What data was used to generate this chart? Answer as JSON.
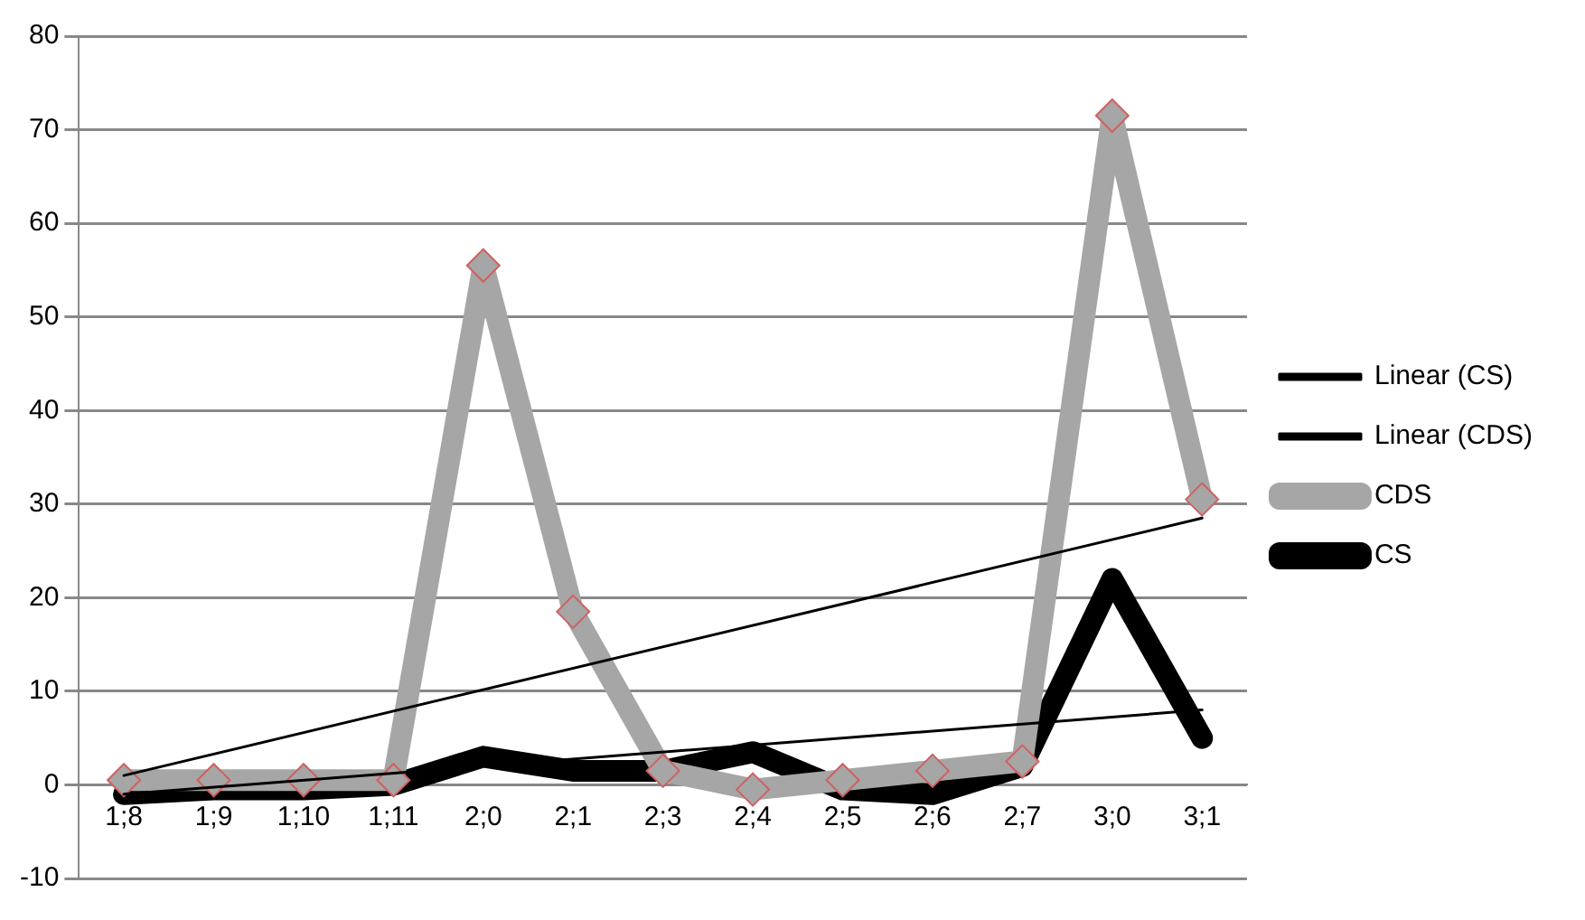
{
  "chart_data": {
    "type": "line",
    "categories": [
      "1;8",
      "1;9",
      "1;10",
      "1;11",
      "2;0",
      "2;1",
      "2;3",
      "2;4",
      "2;5",
      "2;6",
      "2;7",
      "3;0",
      "3;1"
    ],
    "series": [
      {
        "name": "CS",
        "color": "#000000",
        "marker": "none",
        "values": [
          -1,
          -0.5,
          -0.5,
          0,
          3,
          1.5,
          1.5,
          3.5,
          -0.5,
          -1,
          2,
          22,
          5
        ]
      },
      {
        "name": "CDS",
        "color": "#a6a6a6",
        "marker": "diamond",
        "values": [
          0.5,
          0.5,
          0.5,
          0.5,
          55.5,
          18.5,
          1.5,
          -0.5,
          0.5,
          1.5,
          2.5,
          71.5,
          30.5
        ]
      },
      {
        "name": "Linear (CS)",
        "type": "line",
        "color": "#000000",
        "marker": "none",
        "x": [
          "1;8",
          "3;1"
        ],
        "values": [
          -1,
          8
        ]
      },
      {
        "name": "Linear (CDS)",
        "type": "line",
        "color": "#000000",
        "marker": "none",
        "x": [
          "1;8",
          "3;1"
        ],
        "values": [
          1,
          28.5
        ]
      }
    ],
    "ylim": [
      -10,
      80
    ],
    "yticks": [
      -10,
      0,
      10,
      20,
      30,
      40,
      50,
      60,
      70,
      80
    ],
    "grid": "y",
    "legend": "right"
  }
}
